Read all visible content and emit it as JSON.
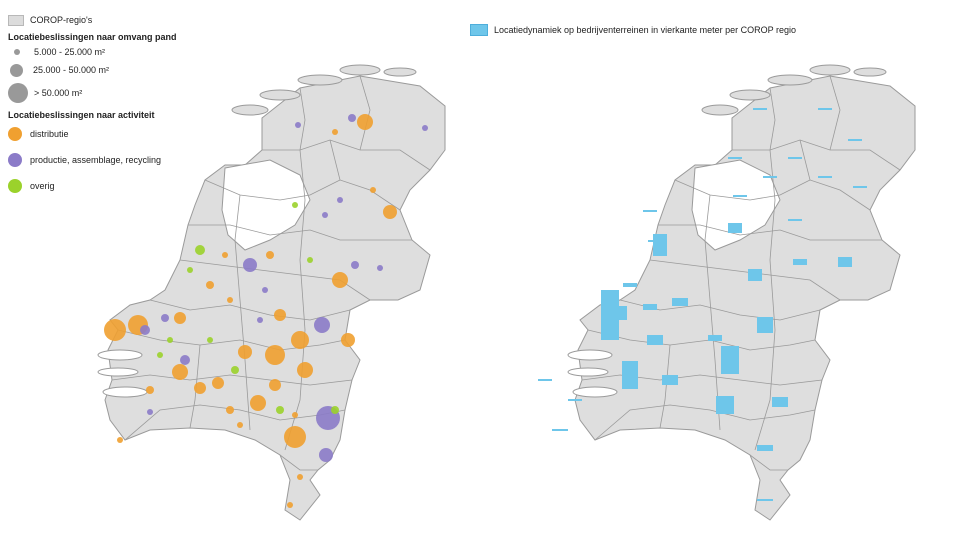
{
  "legend_left": {
    "corop_label": "COROP-regio's",
    "size_title": "Locatiebeslissingen naar omvang pand",
    "sizes": [
      {
        "label": "5.000 - 25.000 m²",
        "level": "small"
      },
      {
        "label": "25.000 - 50.000 m²",
        "level": "medium"
      },
      {
        "label": "> 50.000 m²",
        "level": "large"
      }
    ],
    "activity_title": "Locatiebeslissingen naar activiteit",
    "activities": [
      {
        "label": "distributie",
        "color": "#f0a030"
      },
      {
        "label": "productie, assemblage, recycling",
        "color": "#8b7bc8"
      },
      {
        "label": "overig",
        "color": "#9bd22b"
      }
    ]
  },
  "legend_right": {
    "label": "Locatiedynamiek op bedrijventerreinen in vierkante meter per COROP regio",
    "color": "#6ec6ea"
  },
  "colors": {
    "land": "#dedede",
    "border": "#9a9a9a",
    "distributie": "#f0a030",
    "productie": "#8b7bc8",
    "overig": "#9bd22b",
    "bar": "#6ec6ea"
  }
}
